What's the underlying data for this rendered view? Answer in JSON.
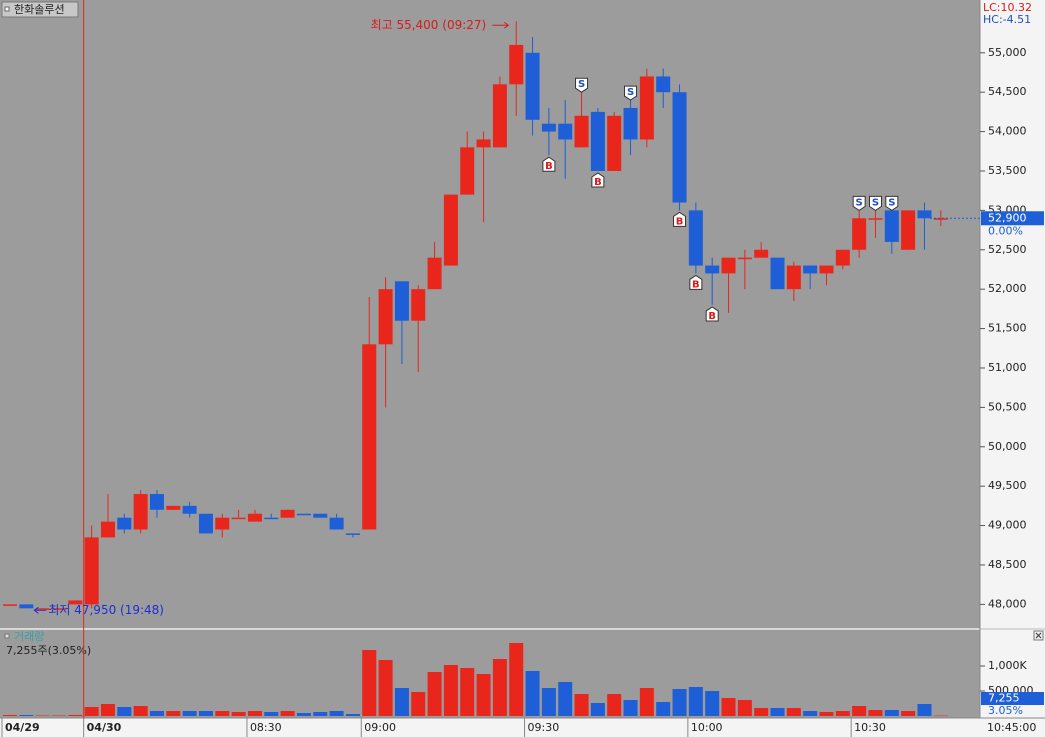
{
  "header": {
    "title": "한화솔루션",
    "lc": "LC:10.32",
    "hc": "HC:-4.51"
  },
  "chart_data": {
    "type": "candlestick",
    "categories": [
      "04/29",
      null,
      null,
      null,
      null,
      "04/30",
      null,
      null,
      null,
      null,
      null,
      null,
      null,
      null,
      null,
      "08:30",
      null,
      null,
      null,
      null,
      null,
      null,
      "09:00",
      null,
      null,
      null,
      null,
      null,
      null,
      null,
      null,
      null,
      "09:30",
      null,
      null,
      null,
      null,
      null,
      null,
      null,
      null,
      null,
      "10:00",
      null,
      null,
      null,
      null,
      null,
      null,
      null,
      null,
      null,
      "10:30",
      null,
      null,
      null,
      null,
      null
    ],
    "open": [
      48000,
      48000,
      47950,
      47950,
      48000,
      48000,
      48850,
      49100,
      48950,
      49400,
      49200,
      49250,
      49150,
      48950,
      49100,
      49050,
      49100,
      49100,
      49150,
      49150,
      49100,
      48900,
      48950,
      51300,
      52100,
      51600,
      52000,
      52300,
      53200,
      53800,
      53800,
      54600,
      55000,
      54100,
      54100,
      53800,
      54250,
      53500,
      54300,
      53900,
      54700,
      54500,
      53000,
      52300,
      52200,
      52400,
      52400,
      52400,
      52000,
      52300,
      52200,
      52300,
      52500,
      52900,
      53000,
      52500,
      53000,
      52900
    ],
    "high": [
      48000,
      48000,
      47950,
      47950,
      48050,
      49000,
      49400,
      49150,
      49450,
      49450,
      49250,
      49300,
      49150,
      49150,
      49200,
      49200,
      49150,
      49200,
      49150,
      49150,
      49150,
      48900,
      51900,
      52150,
      52100,
      52050,
      52600,
      53200,
      54000,
      54000,
      54700,
      55400,
      55200,
      54300,
      54400,
      54500,
      54300,
      54250,
      54400,
      54800,
      54800,
      54600,
      53100,
      52400,
      52400,
      52500,
      52600,
      52400,
      52350,
      52300,
      52300,
      52500,
      53000,
      53000,
      53000,
      53000,
      53100,
      53000
    ],
    "low": [
      48000,
      47950,
      47950,
      47950,
      48000,
      47950,
      48850,
      48900,
      48900,
      49100,
      49200,
      49100,
      48900,
      48850,
      49100,
      49050,
      49100,
      49100,
      49150,
      49100,
      48950,
      48850,
      48950,
      50500,
      51050,
      50950,
      52000,
      52300,
      53200,
      52850,
      53800,
      54200,
      53950,
      53700,
      53400,
      53800,
      53500,
      53500,
      53700,
      53800,
      54300,
      53000,
      52200,
      51800,
      51700,
      52000,
      52400,
      52000,
      51850,
      52000,
      52050,
      52250,
      52400,
      52650,
      52450,
      52500,
      52500,
      52800
    ],
    "close": [
      48000,
      47950,
      47950,
      47950,
      48050,
      48850,
      49050,
      48950,
      49400,
      49200,
      49250,
      49150,
      48900,
      49100,
      49100,
      49150,
      49100,
      49200,
      49150,
      49100,
      48950,
      48900,
      51300,
      52000,
      51600,
      52000,
      52400,
      53200,
      53800,
      53900,
      54600,
      55100,
      54150,
      54000,
      53900,
      54200,
      53500,
      54200,
      53900,
      54700,
      54500,
      53100,
      52300,
      52200,
      52400,
      52400,
      52500,
      52000,
      52300,
      52200,
      52300,
      52500,
      52900,
      52900,
      52600,
      53000,
      52900,
      52900
    ],
    "signals": [
      null,
      null,
      null,
      null,
      null,
      null,
      null,
      null,
      null,
      null,
      null,
      null,
      null,
      null,
      null,
      null,
      null,
      null,
      null,
      null,
      null,
      null,
      null,
      null,
      null,
      null,
      null,
      null,
      null,
      null,
      null,
      null,
      null,
      "B",
      null,
      "S",
      "B",
      null,
      "S",
      null,
      null,
      "B",
      "B",
      "B",
      null,
      null,
      null,
      null,
      null,
      null,
      null,
      null,
      "S",
      "S",
      "S",
      null,
      null,
      null
    ],
    "up_color": "#e8261c",
    "down_color": "#1e5ed6",
    "ylim": [
      47700,
      55670
    ],
    "yticks": [
      {
        "value": 48000,
        "label": "48,000"
      },
      {
        "value": 48500,
        "label": "48,500"
      },
      {
        "value": 49000,
        "label": "49,000"
      },
      {
        "value": 49500,
        "label": "49,500"
      },
      {
        "value": 50000,
        "label": "50,000"
      },
      {
        "value": 50500,
        "label": "50,500"
      },
      {
        "value": 51000,
        "label": "51,000"
      },
      {
        "value": 51500,
        "label": "51,500"
      },
      {
        "value": 52000,
        "label": "52,000"
      },
      {
        "value": 52500,
        "label": "52,500"
      },
      {
        "value": 53000,
        "label": "53,000"
      },
      {
        "value": 53500,
        "label": "53,500"
      },
      {
        "value": 54000,
        "label": "54,000"
      },
      {
        "value": 54500,
        "label": "54,500"
      },
      {
        "value": 55000,
        "label": "55,000"
      }
    ],
    "annotations": {
      "high": "최고 55,400 (09:27)",
      "low": "최저 47,950 (19:48)"
    },
    "last_price": {
      "label": "52,900",
      "change": "0.00%"
    },
    "current_time": "10:45:00",
    "volume_panel": {
      "title": "거래량",
      "summary": "7,255주(3.05%)",
      "values": [
        20000,
        20000,
        10000,
        10000,
        20000,
        180000,
        240000,
        180000,
        200000,
        100000,
        100000,
        100000,
        100000,
        100000,
        80000,
        100000,
        80000,
        100000,
        60000,
        80000,
        100000,
        40000,
        1320000,
        1120000,
        560000,
        480000,
        880000,
        1020000,
        960000,
        840000,
        1140000,
        1460000,
        900000,
        560000,
        680000,
        440000,
        260000,
        440000,
        320000,
        560000,
        280000,
        540000,
        580000,
        500000,
        360000,
        320000,
        160000,
        160000,
        160000,
        100000,
        80000,
        100000,
        200000,
        120000,
        120000,
        100000,
        240000,
        7255
      ],
      "ylim": [
        0,
        1720000
      ],
      "yticks": [
        {
          "value": 500000,
          "label": "500,000"
        },
        {
          "value": 1000000,
          "label": "1,000K"
        }
      ],
      "last_label": "7,255",
      "last_pct": "3.05%"
    }
  }
}
